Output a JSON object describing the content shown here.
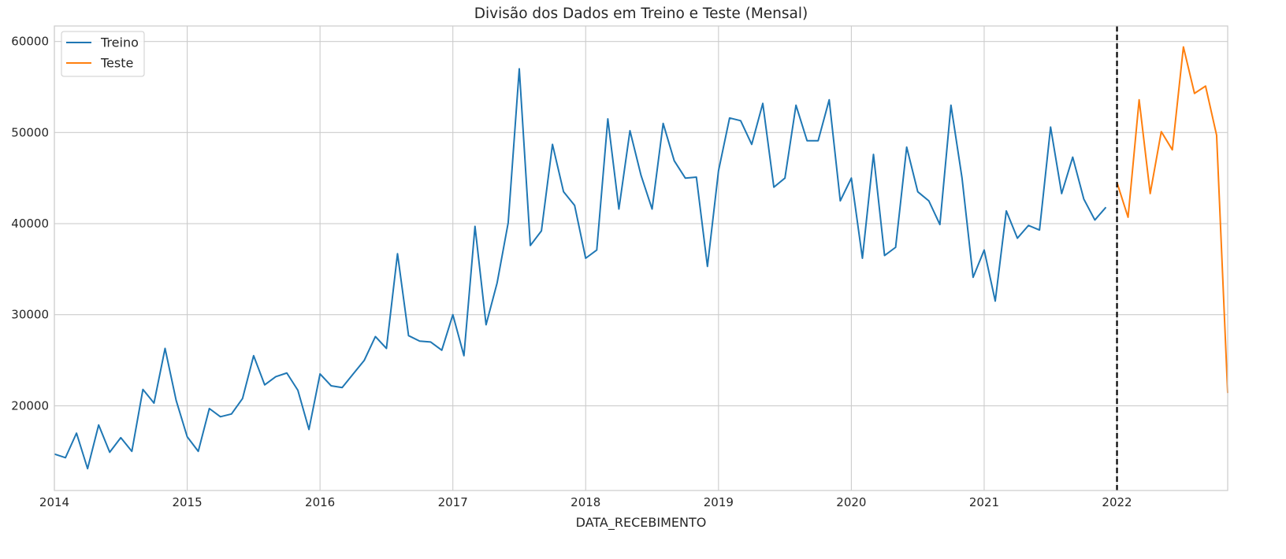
{
  "chart_data": {
    "type": "line",
    "title": "Divisão dos Dados em Treino e Teste (Mensal)",
    "xlabel": "DATA_RECEBIMENTO",
    "ylabel": "",
    "x_ticks": [
      "2014",
      "2015",
      "2016",
      "2017",
      "2018",
      "2019",
      "2020",
      "2021",
      "2022"
    ],
    "y_ticks": [
      20000,
      30000,
      40000,
      50000,
      60000
    ],
    "xlim": [
      "2014-01",
      "2022-11"
    ],
    "ylim": [
      10700,
      61700
    ],
    "grid": true,
    "legend_position": "top-left",
    "split_line": {
      "x": "2022-01",
      "style": "dashed",
      "color": "#000000"
    },
    "series": [
      {
        "name": "Treino",
        "color": "#1f77b4",
        "x": [
          "2014-01",
          "2014-02",
          "2014-03",
          "2014-04",
          "2014-05",
          "2014-06",
          "2014-07",
          "2014-08",
          "2014-09",
          "2014-10",
          "2014-11",
          "2014-12",
          "2015-01",
          "2015-02",
          "2015-03",
          "2015-04",
          "2015-05",
          "2015-06",
          "2015-07",
          "2015-08",
          "2015-09",
          "2015-10",
          "2015-11",
          "2015-12",
          "2016-01",
          "2016-02",
          "2016-03",
          "2016-04",
          "2016-05",
          "2016-06",
          "2016-07",
          "2016-08",
          "2016-09",
          "2016-10",
          "2016-11",
          "2016-12",
          "2017-01",
          "2017-02",
          "2017-03",
          "2017-04",
          "2017-05",
          "2017-06",
          "2017-07",
          "2017-08",
          "2017-09",
          "2017-10",
          "2017-11",
          "2017-12",
          "2018-01",
          "2018-02",
          "2018-03",
          "2018-04",
          "2018-05",
          "2018-06",
          "2018-07",
          "2018-08",
          "2018-09",
          "2018-10",
          "2018-11",
          "2018-12",
          "2019-01",
          "2019-02",
          "2019-03",
          "2019-04",
          "2019-05",
          "2019-06",
          "2019-07",
          "2019-08",
          "2019-09",
          "2019-10",
          "2019-11",
          "2019-12",
          "2020-01",
          "2020-02",
          "2020-03",
          "2020-04",
          "2020-05",
          "2020-06",
          "2020-07",
          "2020-08",
          "2020-09",
          "2020-10",
          "2020-11",
          "2020-12",
          "2021-01",
          "2021-02",
          "2021-03",
          "2021-04",
          "2021-05",
          "2021-06",
          "2021-07",
          "2021-08",
          "2021-09",
          "2021-10",
          "2021-11",
          "2021-12"
        ],
        "values": [
          14700,
          14300,
          17000,
          13100,
          17900,
          14900,
          16500,
          15000,
          21800,
          20300,
          26300,
          20600,
          16600,
          15000,
          19700,
          18800,
          19100,
          20800,
          25500,
          22300,
          23200,
          23600,
          21700,
          17400,
          23500,
          22200,
          22000,
          23500,
          25000,
          27600,
          26300,
          36700,
          27700,
          27100,
          27000,
          26100,
          30000,
          25500,
          39700,
          28900,
          33500,
          40100,
          57000,
          37600,
          39200,
          48700,
          43500,
          42000,
          36200,
          37100,
          51500,
          41600,
          50200,
          45300,
          41600,
          51000,
          46900,
          45000,
          45100,
          35300,
          45800,
          51600,
          51300,
          48700,
          53200,
          44000,
          45000,
          53000,
          49100,
          49100,
          53600,
          42500,
          45000,
          36200,
          47600,
          36500,
          37400,
          48400,
          43500,
          42500,
          39900,
          53000,
          45000,
          34100,
          37100,
          31500,
          41400,
          38400,
          39800,
          39300,
          50600,
          43300,
          47300,
          42700,
          40400,
          41800
        ]
      },
      {
        "name": "Teste",
        "color": "#ff7f0e",
        "x": [
          "2022-01",
          "2022-02",
          "2022-03",
          "2022-04",
          "2022-05",
          "2022-06",
          "2022-07",
          "2022-08",
          "2022-09",
          "2022-10",
          "2022-11"
        ],
        "values": [
          44500,
          40700,
          53600,
          43300,
          50100,
          48100,
          59400,
          54300,
          55100,
          49700,
          21400
        ]
      }
    ]
  }
}
